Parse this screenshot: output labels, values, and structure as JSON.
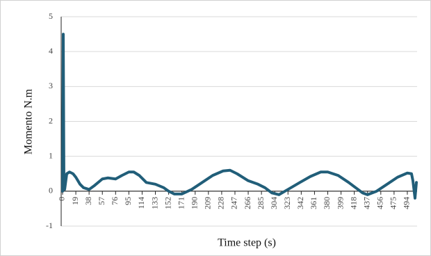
{
  "chart_data": {
    "type": "line",
    "y_label": "Momento N.m",
    "x_label": "Time step (s)",
    "x": [
      0,
      1,
      2,
      3,
      6,
      10,
      15,
      19,
      25,
      30,
      38,
      45,
      57,
      65,
      76,
      85,
      95,
      102,
      110,
      120,
      133,
      145,
      152,
      160,
      171,
      185,
      200,
      215,
      230,
      240,
      250,
      266,
      280,
      290,
      300,
      310,
      323,
      340,
      355,
      370,
      380,
      395,
      410,
      420,
      430,
      437,
      450,
      465,
      480,
      494,
      500,
      502,
      505,
      507
    ],
    "values": [
      0,
      4.5,
      0.1,
      0.05,
      0.5,
      0.55,
      0.5,
      0.4,
      0.2,
      0.1,
      0.05,
      0.15,
      0.35,
      0.38,
      0.35,
      0.45,
      0.55,
      0.55,
      0.45,
      0.25,
      0.2,
      0.1,
      0,
      -0.08,
      -0.08,
      0.05,
      0.25,
      0.45,
      0.58,
      0.6,
      0.5,
      0.3,
      0.2,
      0.1,
      -0.05,
      -0.1,
      0.05,
      0.25,
      0.42,
      0.55,
      0.55,
      0.45,
      0.25,
      0.1,
      -0.05,
      -0.1,
      0,
      0.2,
      0.4,
      0.52,
      0.5,
      0.3,
      -0.2,
      0.25
    ],
    "color": "#215e79",
    "xlim": [
      0,
      508
    ],
    "xticks": [
      0,
      19,
      38,
      57,
      76,
      95,
      114,
      133,
      152,
      171,
      190,
      209,
      228,
      247,
      266,
      285,
      304,
      323,
      342,
      361,
      380,
      399,
      418,
      437,
      456,
      475,
      494
    ],
    "ylim": [
      -1,
      5
    ],
    "yticks": [
      -1,
      0,
      1,
      2,
      3,
      4,
      5
    ],
    "grid": true
  }
}
